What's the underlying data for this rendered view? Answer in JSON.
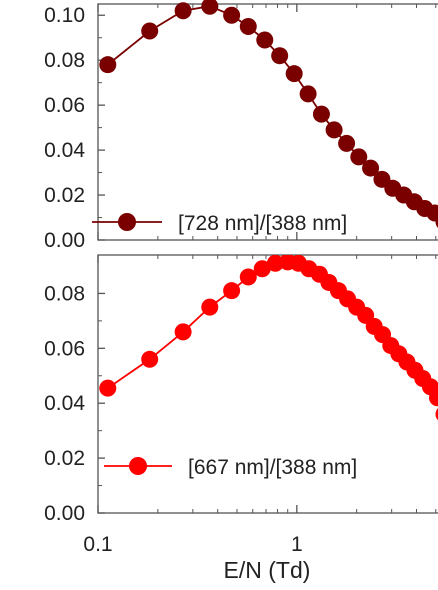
{
  "chart_data": [
    {
      "type": "line",
      "xscale": "log",
      "xlim": [
        0.1,
        5.5
      ],
      "ylim": [
        0.0,
        0.105
      ],
      "yticks": [
        "0.00",
        "0.02",
        "0.04",
        "0.06",
        "0.08",
        "0.10"
      ],
      "ytick_values": [
        0.0,
        0.02,
        0.04,
        0.06,
        0.08,
        0.1
      ],
      "legend_position": "bottom-right",
      "series": [
        {
          "name": "[728 nm]/[388 nm]",
          "color": "#7a0000",
          "x": [
            0.112,
            0.182,
            0.268,
            0.365,
            0.47,
            0.57,
            0.69,
            0.82,
            0.97,
            1.14,
            1.33,
            1.54,
            1.78,
            2.05,
            2.35,
            2.68,
            3.04,
            3.45,
            3.9,
            4.4,
            4.95,
            5.5
          ],
          "y": [
            0.078,
            0.093,
            0.102,
            0.104,
            0.1,
            0.095,
            0.089,
            0.082,
            0.074,
            0.065,
            0.056,
            0.049,
            0.043,
            0.037,
            0.032,
            0.027,
            0.023,
            0.02,
            0.017,
            0.014,
            0.012,
            0.008
          ]
        }
      ]
    },
    {
      "type": "line",
      "xscale": "log",
      "xlim": [
        0.1,
        5.5
      ],
      "ylim": [
        0.0,
        0.094
      ],
      "xticks": [
        "0.1",
        "1"
      ],
      "xtick_values": [
        0.1,
        1
      ],
      "xlabel": "E/N (Td)",
      "yticks": [
        "0.00",
        "0.02",
        "0.04",
        "0.06",
        "0.08"
      ],
      "ytick_values": [
        0.0,
        0.02,
        0.04,
        0.06,
        0.08
      ],
      "legend_position": "bottom-right",
      "series": [
        {
          "name": "[667 nm]/[388 nm]",
          "color": "#ff0000",
          "x": [
            0.112,
            0.182,
            0.268,
            0.365,
            0.47,
            0.57,
            0.67,
            0.78,
            0.9,
            1.02,
            1.15,
            1.3,
            1.45,
            1.62,
            1.8,
            2.0,
            2.22,
            2.45,
            2.7,
            2.97,
            3.26,
            3.58,
            3.93,
            4.3,
            4.7,
            5.1,
            5.5
          ],
          "y": [
            0.0455,
            0.056,
            0.066,
            0.075,
            0.081,
            0.086,
            0.089,
            0.091,
            0.0915,
            0.091,
            0.089,
            0.087,
            0.084,
            0.081,
            0.078,
            0.075,
            0.072,
            0.068,
            0.065,
            0.061,
            0.058,
            0.055,
            0.052,
            0.049,
            0.046,
            0.042,
            0.036
          ]
        }
      ]
    }
  ]
}
